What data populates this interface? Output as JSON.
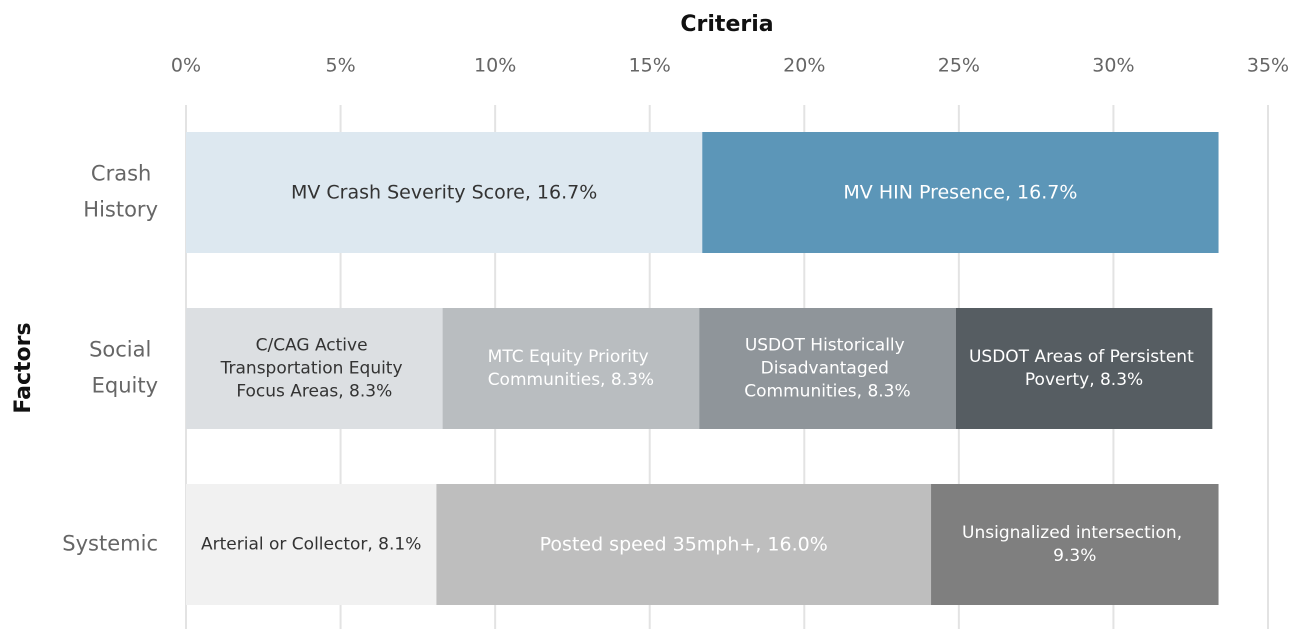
{
  "chart_data": {
    "type": "stacked-bar-horizontal",
    "title": "Criteria",
    "y_label": "Factors",
    "categories": [
      "Crash History",
      "Social Equity",
      "Systemic"
    ],
    "stacks": [
      [
        {
          "value": 16.7,
          "value_label": "MV Crash Severity Score, 16.7%",
          "color": "#dde8f0",
          "text_color": "#333333"
        },
        {
          "value": 16.7,
          "value_label": "MV HIN Presence, 16.7%",
          "color": "#5c96b8",
          "text_color": "#ffffff"
        }
      ],
      [
        {
          "value": 8.3,
          "value_label": "C/CAG Active Transportation Equity Focus Areas, 8.3%",
          "color": "#dcdfe2",
          "text_color": "#333333"
        },
        {
          "value": 8.3,
          "value_label": "MTC Equity Priority Communities, 8.3%",
          "color": "#b9bdc0",
          "text_color": "#ffffff"
        },
        {
          "value": 8.3,
          "value_label": "USDOT Historically Disadvantaged Communities, 8.3%",
          "color": "#8f959a",
          "text_color": "#ffffff"
        },
        {
          "value": 8.3,
          "value_label": "USDOT Areas of Persistent Poverty, 8.3%",
          "color": "#565d62",
          "text_color": "#ffffff"
        }
      ],
      [
        {
          "value": 8.1,
          "value_label": "Arterial or Collector, 8.1%",
          "color": "#f1f1f1",
          "text_color": "#333333"
        },
        {
          "value": 16.0,
          "value_label": "Posted speed 35mph+, 16.0%",
          "color": "#bebebe",
          "text_color": "#ffffff"
        },
        {
          "value": 9.3,
          "value_label": "Unsignalized intersection, 9.3%",
          "color": "#7f7f7f",
          "text_color": "#ffffff"
        }
      ]
    ],
    "xlim": [
      0,
      35
    ],
    "xticks": [
      {
        "value": 0,
        "label": "0%"
      },
      {
        "value": 5,
        "label": "5%"
      },
      {
        "value": 10,
        "label": "10%"
      },
      {
        "value": 15,
        "label": "15%"
      },
      {
        "value": 20,
        "label": "20%"
      },
      {
        "value": 25,
        "label": "25%"
      },
      {
        "value": 30,
        "label": "30%"
      },
      {
        "value": 35,
        "label": "35%"
      }
    ],
    "grid": true
  }
}
